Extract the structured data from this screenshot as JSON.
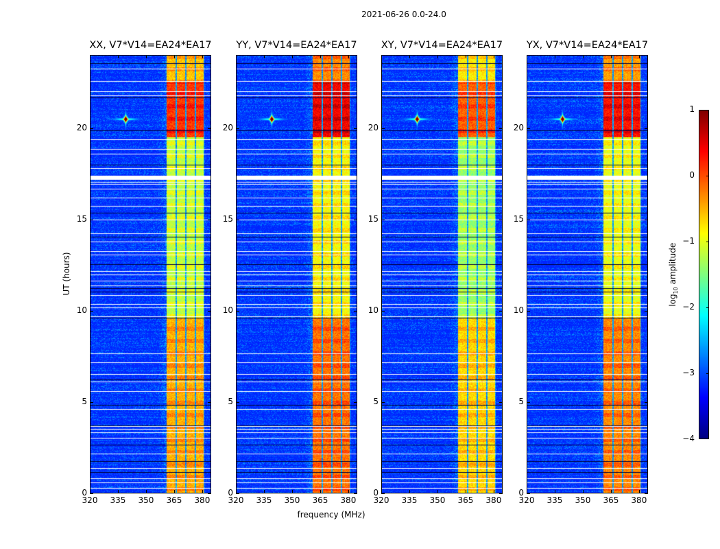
{
  "figure": {
    "suptitle": "2021-06-26 0.0-24.0",
    "xlabel": "frequency (MHz)",
    "ylabel": "UT (hours)",
    "colorbar_label_prefix": "log",
    "colorbar_label_sub": "10",
    "colorbar_label_suffix": " amplitude"
  },
  "chart_data": {
    "type": "heatmap",
    "colormap": "jet",
    "panels": [
      {
        "title": "XX, V7*V14=EA24*EA17",
        "band_gain": 1.0
      },
      {
        "title": "YY, V7*V14=EA24*EA17",
        "band_gain": 1.15
      },
      {
        "title": "XY, V7*V14=EA24*EA17",
        "band_gain": 0.9
      },
      {
        "title": "YX, V7*V14=EA24*EA17",
        "band_gain": 1.1
      }
    ],
    "xlim": [
      320,
      384.8
    ],
    "ylim": [
      0,
      24
    ],
    "xticks": [
      "320",
      "335",
      "350",
      "365",
      "380"
    ],
    "xtick_values": [
      320,
      335,
      350,
      365,
      380
    ],
    "yticks": [
      "0",
      "5",
      "10",
      "15",
      "20"
    ],
    "ytick_values": [
      0,
      5,
      10,
      15,
      20
    ],
    "color_range": [
      -4,
      1
    ],
    "colorbar_ticks": [
      "1",
      "0",
      "−1",
      "−2",
      "−3",
      "−4"
    ],
    "colorbar_tick_values": [
      1,
      0,
      -1,
      -2,
      -3,
      -4
    ],
    "background_level": -3.2,
    "signal_subbands_mhz": [
      [
        361,
        365.6
      ],
      [
        366.3,
        370.8
      ],
      [
        371.5,
        376
      ],
      [
        376.6,
        380.7
      ]
    ],
    "signal_level_by_time": [
      {
        "from": 0,
        "to": 9.6,
        "level": -0.5
      },
      {
        "from": 9.6,
        "to": 19.5,
        "level": -1.2
      },
      {
        "from": 19.5,
        "to": 22.5,
        "level": 0.1
      },
      {
        "from": 22.5,
        "to": 24,
        "level": -0.6
      }
    ],
    "point_source": {
      "freq_mhz": 339,
      "ut_hours": 20.5,
      "level": 0.8
    },
    "flagged_white_ut": [
      23.25,
      22.57,
      22.01,
      21.78,
      19.38,
      18.85,
      18.59,
      17.8,
      17.05,
      16.94,
      16.68,
      16.19,
      15.74,
      14.99,
      14.23,
      13.78,
      13.26,
      13.07,
      12.17,
      11.98,
      11.64,
      11.38,
      10.85,
      10.37,
      10.18,
      9.69,
      7.66,
      7.17,
      6.54,
      6.12,
      5.6,
      4.62,
      3.68,
      3.53,
      3.34,
      3.04,
      2.18,
      1.39,
      0.83,
      0.6,
      0.3
    ],
    "flagged_dark_ut": [
      23.55,
      21.67,
      19.87,
      17.99,
      17.35,
      15.36,
      14.05,
      12.54,
      11.23,
      11.04,
      9.61,
      6.23,
      4.85,
      3.72,
      2.67,
      1.77,
      1.16
    ]
  }
}
